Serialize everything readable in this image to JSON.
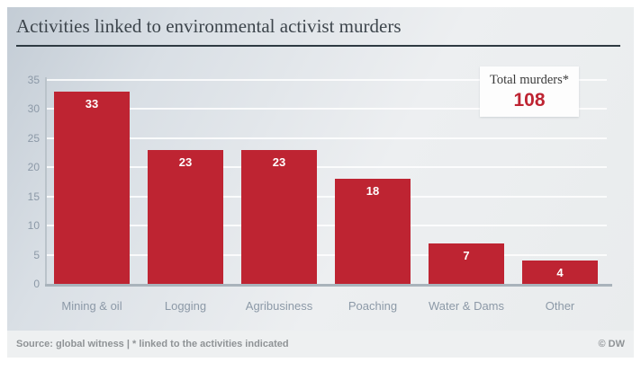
{
  "header": {
    "title": "Activities linked to environmental activist murders"
  },
  "chart_data": {
    "type": "bar",
    "title": "Activities linked to environmental activist murders",
    "categories": [
      "Mining & oil",
      "Logging",
      "Agribusiness",
      "Poaching",
      "Water & Dams",
      "Other"
    ],
    "values": [
      33,
      23,
      23,
      18,
      7,
      4
    ],
    "yticks": [
      0,
      5,
      10,
      15,
      20,
      25,
      30,
      35
    ],
    "ylim": [
      0,
      35
    ],
    "xlabel": "",
    "ylabel": "",
    "grid": true,
    "legend": "none",
    "bar_color": "#be2432",
    "value_label_color": "#ffffff",
    "total_label": "Total murders*",
    "total_value": "108",
    "total_value_color": "#be2432"
  },
  "footer": {
    "source": "Source: global witness | * linked to the activities indicated",
    "credit": "© DW"
  }
}
